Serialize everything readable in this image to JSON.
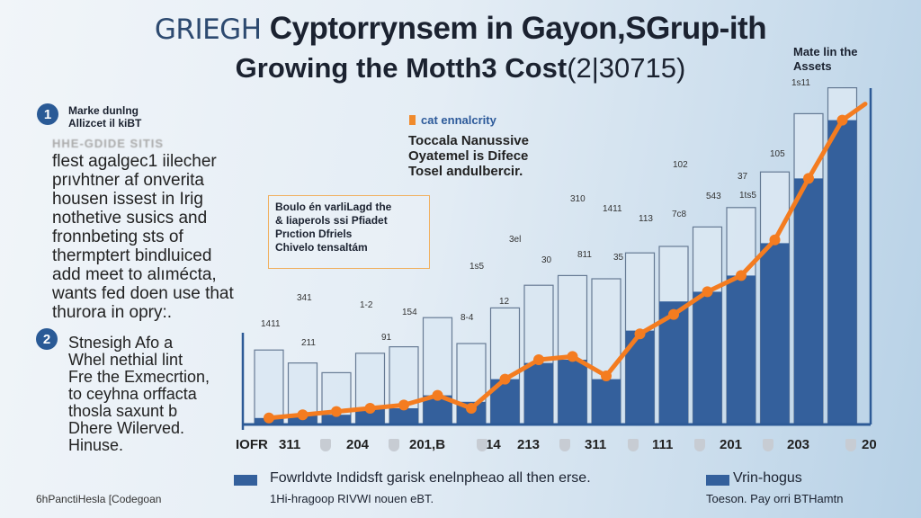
{
  "title": {
    "line1_prefix": "GRIEGH",
    "line1_main": "Cyptorrynsem in Gayon,SGrup-ith",
    "line2_main": "Growing the Motth3 Cost",
    "line2_suffix": "(2|30715)"
  },
  "left_panel": {
    "item1": {
      "number": "1",
      "heading_line1": "Marke dunlng",
      "heading_line2": "Allizcet il kiBT",
      "blurred_line": "HHE-GDIDE SITIS",
      "body": [
        "flest agalgec1 iilecher",
        "prıvhtner af onverita",
        "housen issest in Irig",
        "nothetive susics and",
        "fronnbeting sts of",
        "thermptert bindluiced",
        "add meet to alımécta,",
        "wants fed doen use that",
        "thurora in opry:."
      ]
    },
    "item2": {
      "number": "2",
      "body": [
        "Stnesigh Afo a",
        "Whel nethial lint",
        "Fre the Exmecrtion,",
        "to ceyhna orffacta",
        "thosla saxunt b",
        "Dhere Wilerved.",
        "Hinuse."
      ]
    },
    "footer": "6hPanctiHesla [Codegoan"
  },
  "callouts": {
    "legend_line": "cat ennalcrity",
    "text": [
      "Toccala Nanussive",
      "Oyatemel is Difece",
      "Tosel andulbercir."
    ],
    "box": [
      "Boulo én varliLagd the",
      "& Iiaperols ssi Pfiadet",
      "Prıction Dfriels",
      "Chivelo tensaltám"
    ],
    "top_right": [
      "Mate lin the",
      "Assets"
    ]
  },
  "chart_data": {
    "type": "bar",
    "ylim": [
      0,
      105
    ],
    "series": [
      {
        "name": "Fowrldvte Indidsft garisk enelnpheao all then erse.",
        "kind": "bar-filled",
        "color": "#34609c",
        "values": [
          2,
          3,
          3,
          5,
          5,
          9,
          7,
          14,
          19,
          20,
          14,
          29,
          38,
          41,
          46,
          56,
          76,
          94
        ]
      },
      {
        "name": "Vrin-hogus",
        "kind": "bar-outline",
        "color": "#dbe8f3",
        "values": [
          23,
          19,
          16,
          22,
          24,
          33,
          25,
          36,
          43,
          46,
          45,
          53,
          55,
          61,
          67,
          78,
          96,
          104
        ]
      },
      {
        "name": "cat ennalcrity",
        "kind": "line",
        "color": "#f47c20",
        "values": [
          2,
          3,
          4,
          5,
          6,
          9,
          5,
          14,
          20,
          21,
          15,
          28,
          34,
          41,
          46,
          57,
          76,
          94
        ]
      }
    ],
    "x_ticks": [
      "IOFR",
      "311",
      "204",
      "201,B",
      "14",
      "213",
      "311",
      "111",
      "201",
      "203",
      "20"
    ],
    "annotations": [
      "1411",
      "211",
      "341",
      "1-2",
      "154",
      "91",
      "8-4",
      "1s5",
      "12",
      "30",
      "811",
      "35",
      "3el",
      "310",
      "1411",
      "113",
      "7c8",
      "543",
      "102",
      "37",
      "1ts5",
      "105",
      "1s11"
    ],
    "legend": {
      "left_label": "Fowrldvte Indidsft garisk enelnpheao all then erse.",
      "left_sub": "1Hi-hragoop RIVWI nouen eBT.",
      "right_label": "Vrin-hogus",
      "right_sub": "Toeson. Pay orri BTHamtn"
    },
    "grid": false
  }
}
